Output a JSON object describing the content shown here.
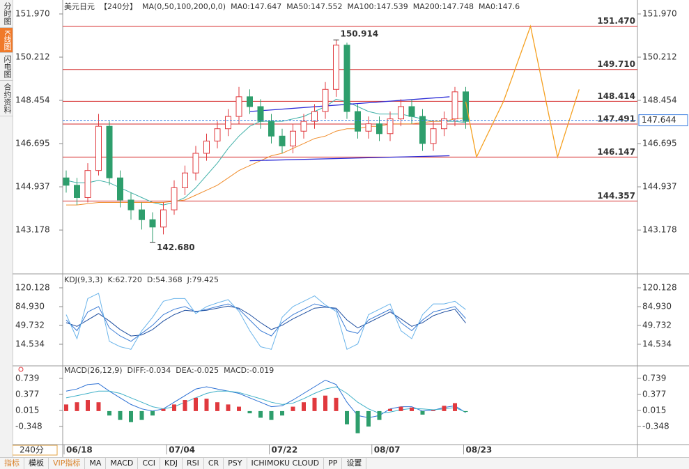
{
  "sidebar": [
    "分时图",
    "K线图",
    "闪电图",
    "合约资料"
  ],
  "toolbar": [
    "指标",
    "模板",
    "VIP指标",
    "MA",
    "MACD",
    "CCI",
    "KDJ",
    "RSI",
    "CR",
    "PSY",
    "ICHIMOKU CLOUD",
    "PP",
    "设置"
  ],
  "chart_data": [
    {
      "type": "candlestick",
      "title": "美元日元",
      "period": "【240分】",
      "indicator": "MA(0,50,100,200,0,0)",
      "period_box": "240分",
      "legend": [
        {
          "label": "MA0:147.647",
          "color": "#29a9e0"
        },
        {
          "label": "MA50:147.552",
          "color": "#3fb0a8"
        },
        {
          "label": "MA100:147.539",
          "color": "#2f8fd8"
        },
        {
          "label": "MA200:147.748",
          "color": "#f08c2a"
        },
        {
          "label": "MA0:147.6",
          "color": "#e79ac8"
        }
      ],
      "open": [
        145.3,
        145.0,
        144.5,
        145.6,
        147.4,
        145.3,
        144.4,
        144.0,
        143.6,
        143.3,
        144.0,
        144.9,
        145.5,
        146.3,
        146.8,
        147.3,
        147.8,
        148.6,
        148.2,
        147.6,
        147.0,
        146.6,
        147.2,
        147.6,
        148.0,
        148.9,
        150.7,
        148.0,
        147.2,
        147.5,
        147.1,
        147.7,
        148.2,
        147.8,
        146.7,
        147.3,
        147.7,
        148.8
      ],
      "high": [
        145.6,
        145.3,
        145.9,
        147.9,
        147.6,
        145.6,
        144.7,
        144.3,
        143.9,
        144.3,
        145.2,
        145.8,
        146.6,
        147.1,
        147.6,
        148.1,
        149.0,
        148.9,
        148.5,
        147.9,
        147.3,
        147.5,
        147.9,
        148.3,
        149.2,
        150.914,
        150.8,
        148.3,
        147.8,
        147.8,
        148.0,
        148.5,
        148.5,
        148.1,
        147.6,
        148.0,
        149.0,
        149.0
      ],
      "low": [
        144.7,
        144.2,
        144.3,
        145.4,
        145.0,
        144.1,
        143.6,
        143.2,
        142.68,
        143.0,
        143.8,
        144.6,
        145.2,
        146.0,
        146.5,
        147.0,
        147.5,
        147.9,
        147.3,
        146.7,
        146.3,
        146.3,
        146.9,
        147.3,
        147.7,
        148.6,
        147.7,
        146.9,
        146.9,
        146.8,
        146.8,
        147.4,
        147.5,
        146.4,
        146.4,
        147.0,
        147.4,
        147.3
      ],
      "close": [
        145.0,
        144.5,
        145.6,
        147.4,
        145.3,
        144.4,
        144.0,
        143.6,
        143.3,
        144.0,
        144.9,
        145.5,
        146.3,
        146.8,
        147.3,
        147.8,
        148.6,
        148.2,
        147.6,
        147.0,
        146.6,
        147.2,
        147.6,
        148.0,
        148.9,
        150.7,
        148.0,
        147.2,
        147.5,
        147.1,
        147.7,
        148.2,
        147.8,
        146.7,
        147.3,
        147.7,
        148.8,
        147.6
      ],
      "up_color": "#e0393e",
      "down_color": "#2e9e6c",
      "series": [
        {
          "color": "#3fb0a8",
          "values": [
            145.2,
            145.1,
            145.1,
            145.2,
            145.1,
            144.9,
            144.7,
            144.5,
            144.3,
            144.2,
            144.3,
            144.5,
            144.9,
            145.4,
            145.9,
            146.5,
            147.0,
            147.4,
            147.6,
            147.6,
            147.6,
            147.7,
            147.8,
            148.0,
            148.2,
            148.5,
            148.4,
            148.2,
            148.0,
            147.9,
            147.9,
            147.9,
            147.8,
            147.7,
            147.6,
            147.6,
            147.6,
            147.552
          ]
        },
        {
          "color": "#f08c2a",
          "values": [
            144.2,
            144.2,
            144.25,
            144.3,
            144.3,
            144.3,
            144.3,
            144.3,
            144.3,
            144.3,
            144.35,
            144.4,
            144.6,
            144.8,
            145.0,
            145.3,
            145.6,
            145.8,
            146.0,
            146.2,
            146.3,
            146.5,
            146.7,
            146.9,
            147.0,
            147.2,
            147.3,
            147.3,
            147.4,
            147.4,
            147.5,
            147.5,
            147.5,
            147.55,
            147.6,
            147.6,
            147.7,
            147.748
          ]
        }
      ],
      "trendlines": [
        {
          "color": "#2b2bd6",
          "x": [
            17,
            35.5
          ],
          "values": [
            148.0,
            148.6
          ]
        },
        {
          "color": "#2b2bd6",
          "x": [
            17,
            35.5
          ],
          "values": [
            146.0,
            146.2
          ]
        }
      ],
      "forecast": {
        "color": "#f5a020",
        "x": [
          37,
          38,
          40.5,
          43,
          45.5,
          47.5
        ],
        "values": [
          148.4,
          146.147,
          148.414,
          151.47,
          146.147,
          148.9
        ]
      },
      "levels": [
        {
          "value": 151.47,
          "label": "151.470"
        },
        {
          "value": 149.71,
          "label": "149.710"
        },
        148.414,
        147.491,
        146.147,
        144.357
      ],
      "level_color": "#d42a2a",
      "current": 147.644,
      "current_color": "#3b7de0",
      "annotations": [
        {
          "x": 25,
          "value": 150.914,
          "color": "#e0393e"
        },
        {
          "x": 8,
          "value": 142.68,
          "label": "142.680",
          "color": "#2e9e6c"
        }
      ],
      "xticks": [
        {
          "value": 0,
          "label": "06/18"
        },
        {
          "value": 9.5,
          "label": "07/04"
        },
        {
          "value": 19,
          "label": "07/22"
        },
        {
          "value": 28.5,
          "label": "08/07"
        },
        {
          "value": 37,
          "label": "08/23"
        }
      ],
      "ylim": [
        141.48,
        152.31
      ],
      "yticks": [
        {
          "value": 151.97,
          "label": "151.970"
        },
        150.212,
        148.454,
        146.695,
        144.937,
        143.178
      ]
    },
    {
      "type": "line",
      "title": "KDJ(9,3,3)",
      "series": [
        {
          "name": "K:62.720",
          "color": "#3a7bd5",
          "values": [
            60,
            40,
            75,
            85,
            45,
            30,
            20,
            35,
            50,
            70,
            80,
            85,
            75,
            80,
            85,
            90,
            80,
            60,
            40,
            30,
            55,
            70,
            80,
            90,
            85,
            80,
            40,
            35,
            60,
            70,
            80,
            55,
            40,
            60,
            75,
            80,
            85,
            62.72
          ]
        },
        {
          "name": "D:54.368",
          "color": "#1f4fa0",
          "values": [
            55,
            48,
            60,
            72,
            58,
            42,
            30,
            32,
            42,
            58,
            70,
            78,
            76,
            78,
            82,
            86,
            82,
            70,
            55,
            42,
            50,
            62,
            72,
            82,
            84,
            82,
            60,
            45,
            55,
            65,
            75,
            62,
            48,
            55,
            68,
            75,
            80,
            54.368
          ]
        },
        {
          "name": "J:79.425",
          "color": "#6ab4ea",
          "values": [
            70,
            25,
            100,
            110,
            20,
            10,
            5,
            40,
            65,
            95,
            100,
            100,
            72,
            85,
            92,
            98,
            76,
            40,
            10,
            5,
            65,
            85,
            95,
            105,
            88,
            76,
            5,
            15,
            70,
            80,
            90,
            40,
            25,
            70,
            90,
            90,
            95,
            79.425
          ]
        }
      ],
      "ylim": [
        -21.97,
        139.68
      ],
      "yticks": [
        120.128,
        {
          "value": 84.93,
          "label": "84.930"
        },
        49.732,
        14.534
      ]
    },
    {
      "type": "macd",
      "title": "MACD(26,12,9)",
      "series": [
        {
          "name": "DIFF:-0.034",
          "color": "#2a6fd4",
          "values": [
            0.45,
            0.5,
            0.6,
            0.62,
            0.45,
            0.3,
            0.15,
            0.05,
            0,
            0.05,
            0.2,
            0.35,
            0.5,
            0.55,
            0.5,
            0.45,
            0.4,
            0.3,
            0.2,
            0.1,
            0.12,
            0.25,
            0.4,
            0.55,
            0.7,
            0.6,
            0.2,
            -0.1,
            -0.15,
            -0.1,
            0.05,
            0.1,
            0.1,
            0,
            0.02,
            0.08,
            0.12,
            -0.034
          ]
        },
        {
          "name": "DEA:-0.025",
          "color": "#3fb0c8",
          "values": [
            0.3,
            0.35,
            0.4,
            0.45,
            0.45,
            0.4,
            0.3,
            0.2,
            0.1,
            0.05,
            0.1,
            0.2,
            0.3,
            0.4,
            0.45,
            0.45,
            0.42,
            0.35,
            0.28,
            0.2,
            0.15,
            0.18,
            0.28,
            0.4,
            0.5,
            0.55,
            0.4,
            0.2,
            0.05,
            -0.05,
            -0.02,
            0.03,
            0.06,
            0.05,
            0.03,
            0.05,
            0.08,
            -0.025
          ]
        },
        {
          "name": "MACD:-0.019",
          "color": "#9b4fc8",
          "bars": true,
          "values": [
            0.15,
            0.2,
            0.25,
            0.2,
            -0.1,
            -0.2,
            -0.25,
            -0.2,
            -0.1,
            0.05,
            0.15,
            0.25,
            0.3,
            0.28,
            0.2,
            0.15,
            0.1,
            -0.05,
            -0.15,
            -0.2,
            -0.1,
            0.1,
            0.2,
            0.3,
            0.35,
            0.3,
            -0.3,
            -0.5,
            -0.35,
            -0.2,
            0.05,
            0.1,
            0.08,
            -0.08,
            0.02,
            0.12,
            0.18,
            -0.019
          ]
        }
      ],
      "up_color": "#e0393e",
      "down_color": "#2e9e6c",
      "ylim": [
        -0.726,
        0.912
      ],
      "yticks": [
        0.739,
        0.377,
        0.015,
        -0.348
      ]
    }
  ]
}
